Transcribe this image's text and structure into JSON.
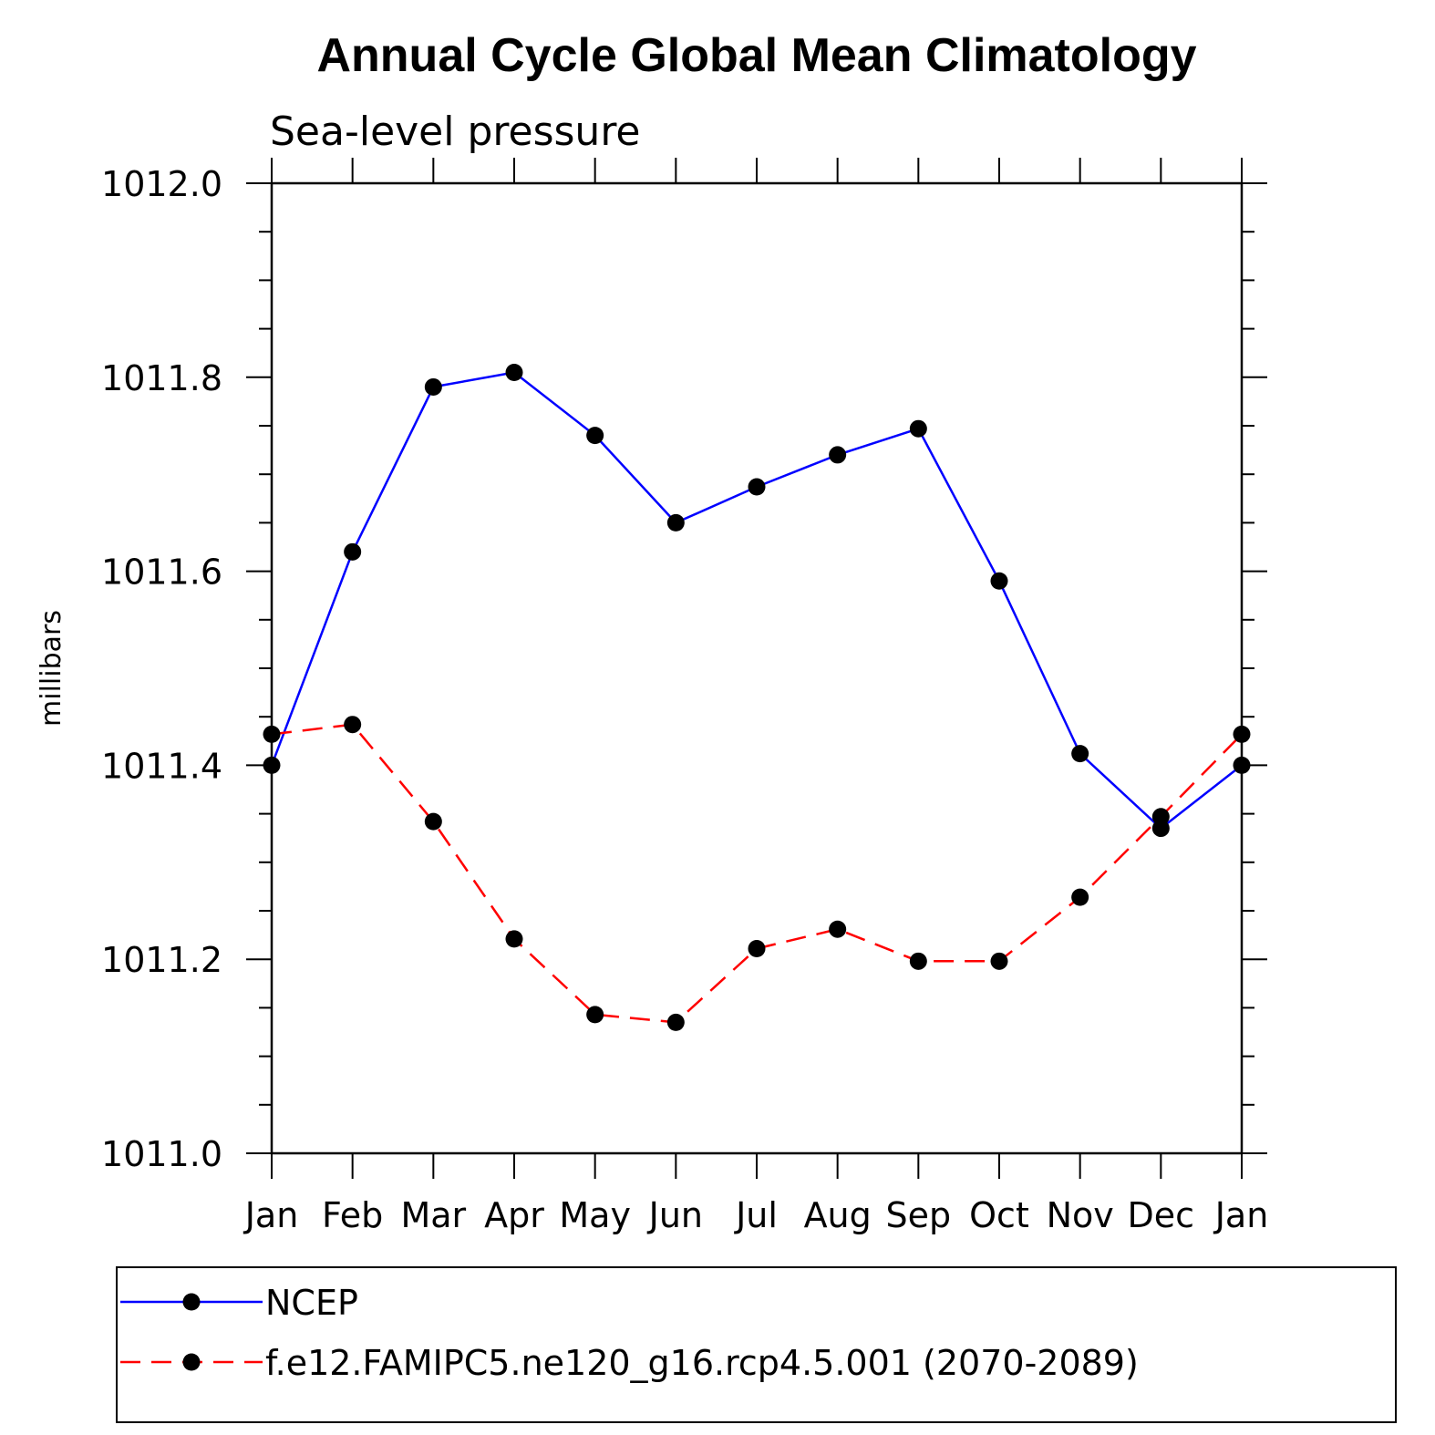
{
  "chart_data": {
    "type": "line",
    "title": "Annual Cycle Global Mean Climatology",
    "subtitle": "Sea-level pressure",
    "ylabel": "millibars",
    "xlabel": "",
    "categories": [
      "Jan",
      "Feb",
      "Mar",
      "Apr",
      "May",
      "Jun",
      "Jul",
      "Aug",
      "Sep",
      "Oct",
      "Nov",
      "Dec",
      "Jan"
    ],
    "ylim": [
      1011.0,
      1012.0
    ],
    "yticks": [
      "1011.0",
      "1011.2",
      "1011.4",
      "1011.6",
      "1011.8",
      "1012.0"
    ],
    "ytick_values": [
      1011.0,
      1011.2,
      1011.4,
      1011.6,
      1011.8,
      1012.0
    ],
    "grid": false,
    "legend_position": "bottom",
    "series": [
      {
        "name": "NCEP",
        "color": "#0000ff",
        "dash": "solid",
        "values": [
          1011.4,
          1011.62,
          1011.79,
          1011.805,
          1011.74,
          1011.65,
          1011.687,
          1011.72,
          1011.747,
          1011.59,
          1011.412,
          1011.335,
          1011.4
        ]
      },
      {
        "name": "f.e12.FAMIPC5.ne120_g16.rcp4.5.001 (2070-2089)",
        "color": "#ff0000",
        "dash": "dashed",
        "values": [
          1011.432,
          1011.442,
          1011.342,
          1011.221,
          1011.143,
          1011.135,
          1011.211,
          1011.231,
          1011.198,
          1011.198,
          1011.264,
          1011.347,
          1011.432
        ]
      }
    ]
  }
}
